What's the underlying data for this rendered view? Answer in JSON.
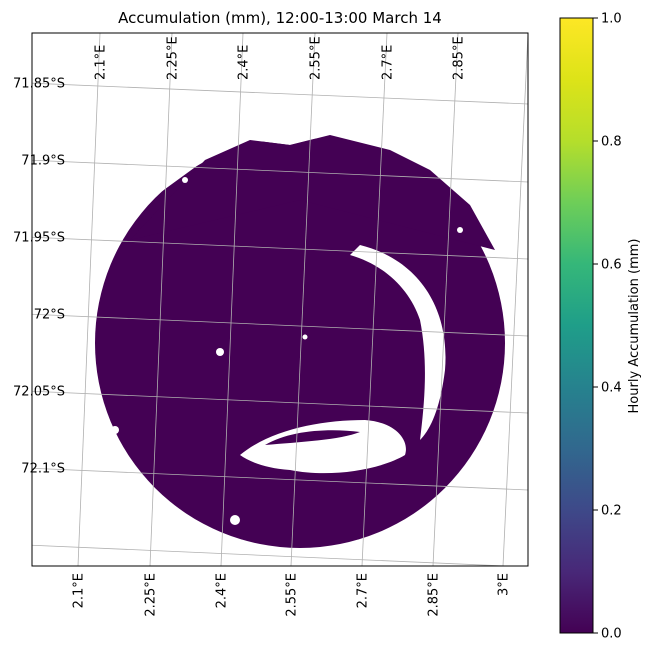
{
  "chart_data": {
    "type": "heatmap",
    "title": "Accumulation (mm), 12:00-13:00 March 14",
    "xlabel": "",
    "ylabel": "",
    "projection": "radar map (rotated lat/lon graticule)",
    "grid": true,
    "lon_ticks_top": [
      "2.1°E",
      "2.25°E",
      "2.4°E",
      "2.55°E",
      "2.7°E",
      "2.85°E"
    ],
    "lon_ticks_bottom": [
      "2.1°E",
      "2.25°E",
      "2.4°E",
      "2.55°E",
      "2.7°E",
      "2.85°E",
      "3°E"
    ],
    "lat_ticks": [
      "71.85°S",
      "71.9°S",
      "71.95°S",
      "72°S",
      "72.05°S",
      "72.1°S"
    ],
    "colorbar": {
      "label": "Hourly Accumulation (mm)",
      "colormap": "viridis",
      "range": [
        0,
        1
      ],
      "ticks": [
        "0.0",
        "0.2",
        "0.4",
        "0.6",
        "0.8",
        "1.0"
      ],
      "tick_values": [
        0,
        0.2,
        0.4,
        0.6,
        0.8,
        1.0
      ]
    },
    "field": {
      "description": "circular radar coverage, nearly uniform near-zero accumulation",
      "typical_value": 0.02,
      "color": "#440154",
      "no_data_color": "#ffffff"
    }
  }
}
